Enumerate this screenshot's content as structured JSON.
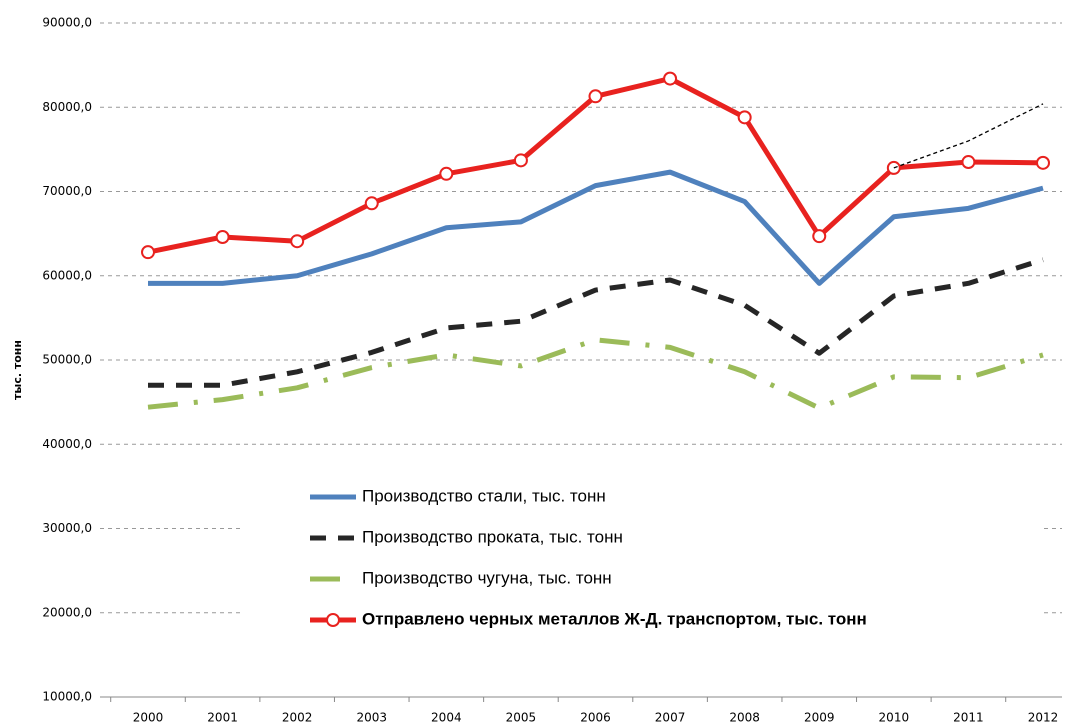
{
  "chart_data": {
    "type": "line",
    "y_label": "тыс. тонн",
    "categories": [
      "2000",
      "2001",
      "2002",
      "2003",
      "2004",
      "2005",
      "2006",
      "2007",
      "2008",
      "2009",
      "2010",
      "2011",
      "2012"
    ],
    "ylim": [
      10000,
      90000
    ],
    "yticks": [
      {
        "value": 10000,
        "label": "10000,0"
      },
      {
        "value": 20000,
        "label": "20000,0"
      },
      {
        "value": 30000,
        "label": "30000,0"
      },
      {
        "value": 40000,
        "label": "40000,0"
      },
      {
        "value": 50000,
        "label": "50000,0"
      },
      {
        "value": 60000,
        "label": "60000,0"
      },
      {
        "value": 70000,
        "label": "70000,0"
      },
      {
        "value": 80000,
        "label": "80000,0"
      },
      {
        "value": 90000,
        "label": "90000,0"
      }
    ],
    "grid": true,
    "series": [
      {
        "name": "Производство стали, тыс. тонн",
        "color": "#4f81bd",
        "style": "solid",
        "values": [
          59100,
          59100,
          60000,
          62600,
          65700,
          66400,
          70700,
          72300,
          68800,
          59100,
          67000,
          68000,
          70400
        ]
      },
      {
        "name": "Производство проката, тыс. тонн",
        "color": "#262626",
        "style": "dashed",
        "values": [
          47000,
          47000,
          48600,
          50900,
          53800,
          54600,
          58300,
          59500,
          56500,
          50800,
          57600,
          59100,
          61900
        ]
      },
      {
        "name": "Производство чугуна, тыс. тонн",
        "color": "#9bbb59",
        "style": "dashdot",
        "values": [
          44400,
          45300,
          46700,
          49100,
          50600,
          49300,
          52400,
          51500,
          48600,
          44300,
          48000,
          47900,
          50600
        ]
      },
      {
        "name": "Отправлено черных металлов Ж-Д. транспортом, тыс. тонн",
        "color": "#e8221f",
        "style": "solid",
        "marker": "circle",
        "bold": true,
        "values": [
          62800,
          64600,
          64100,
          68600,
          72100,
          73700,
          81300,
          83400,
          78800,
          64700,
          72800,
          73500,
          73400
        ]
      },
      {
        "color": "#000000",
        "style": "thin-dashed",
        "values": [
          null,
          null,
          null,
          null,
          null,
          null,
          null,
          null,
          null,
          null,
          72800,
          76000,
          80400
        ]
      }
    ]
  }
}
